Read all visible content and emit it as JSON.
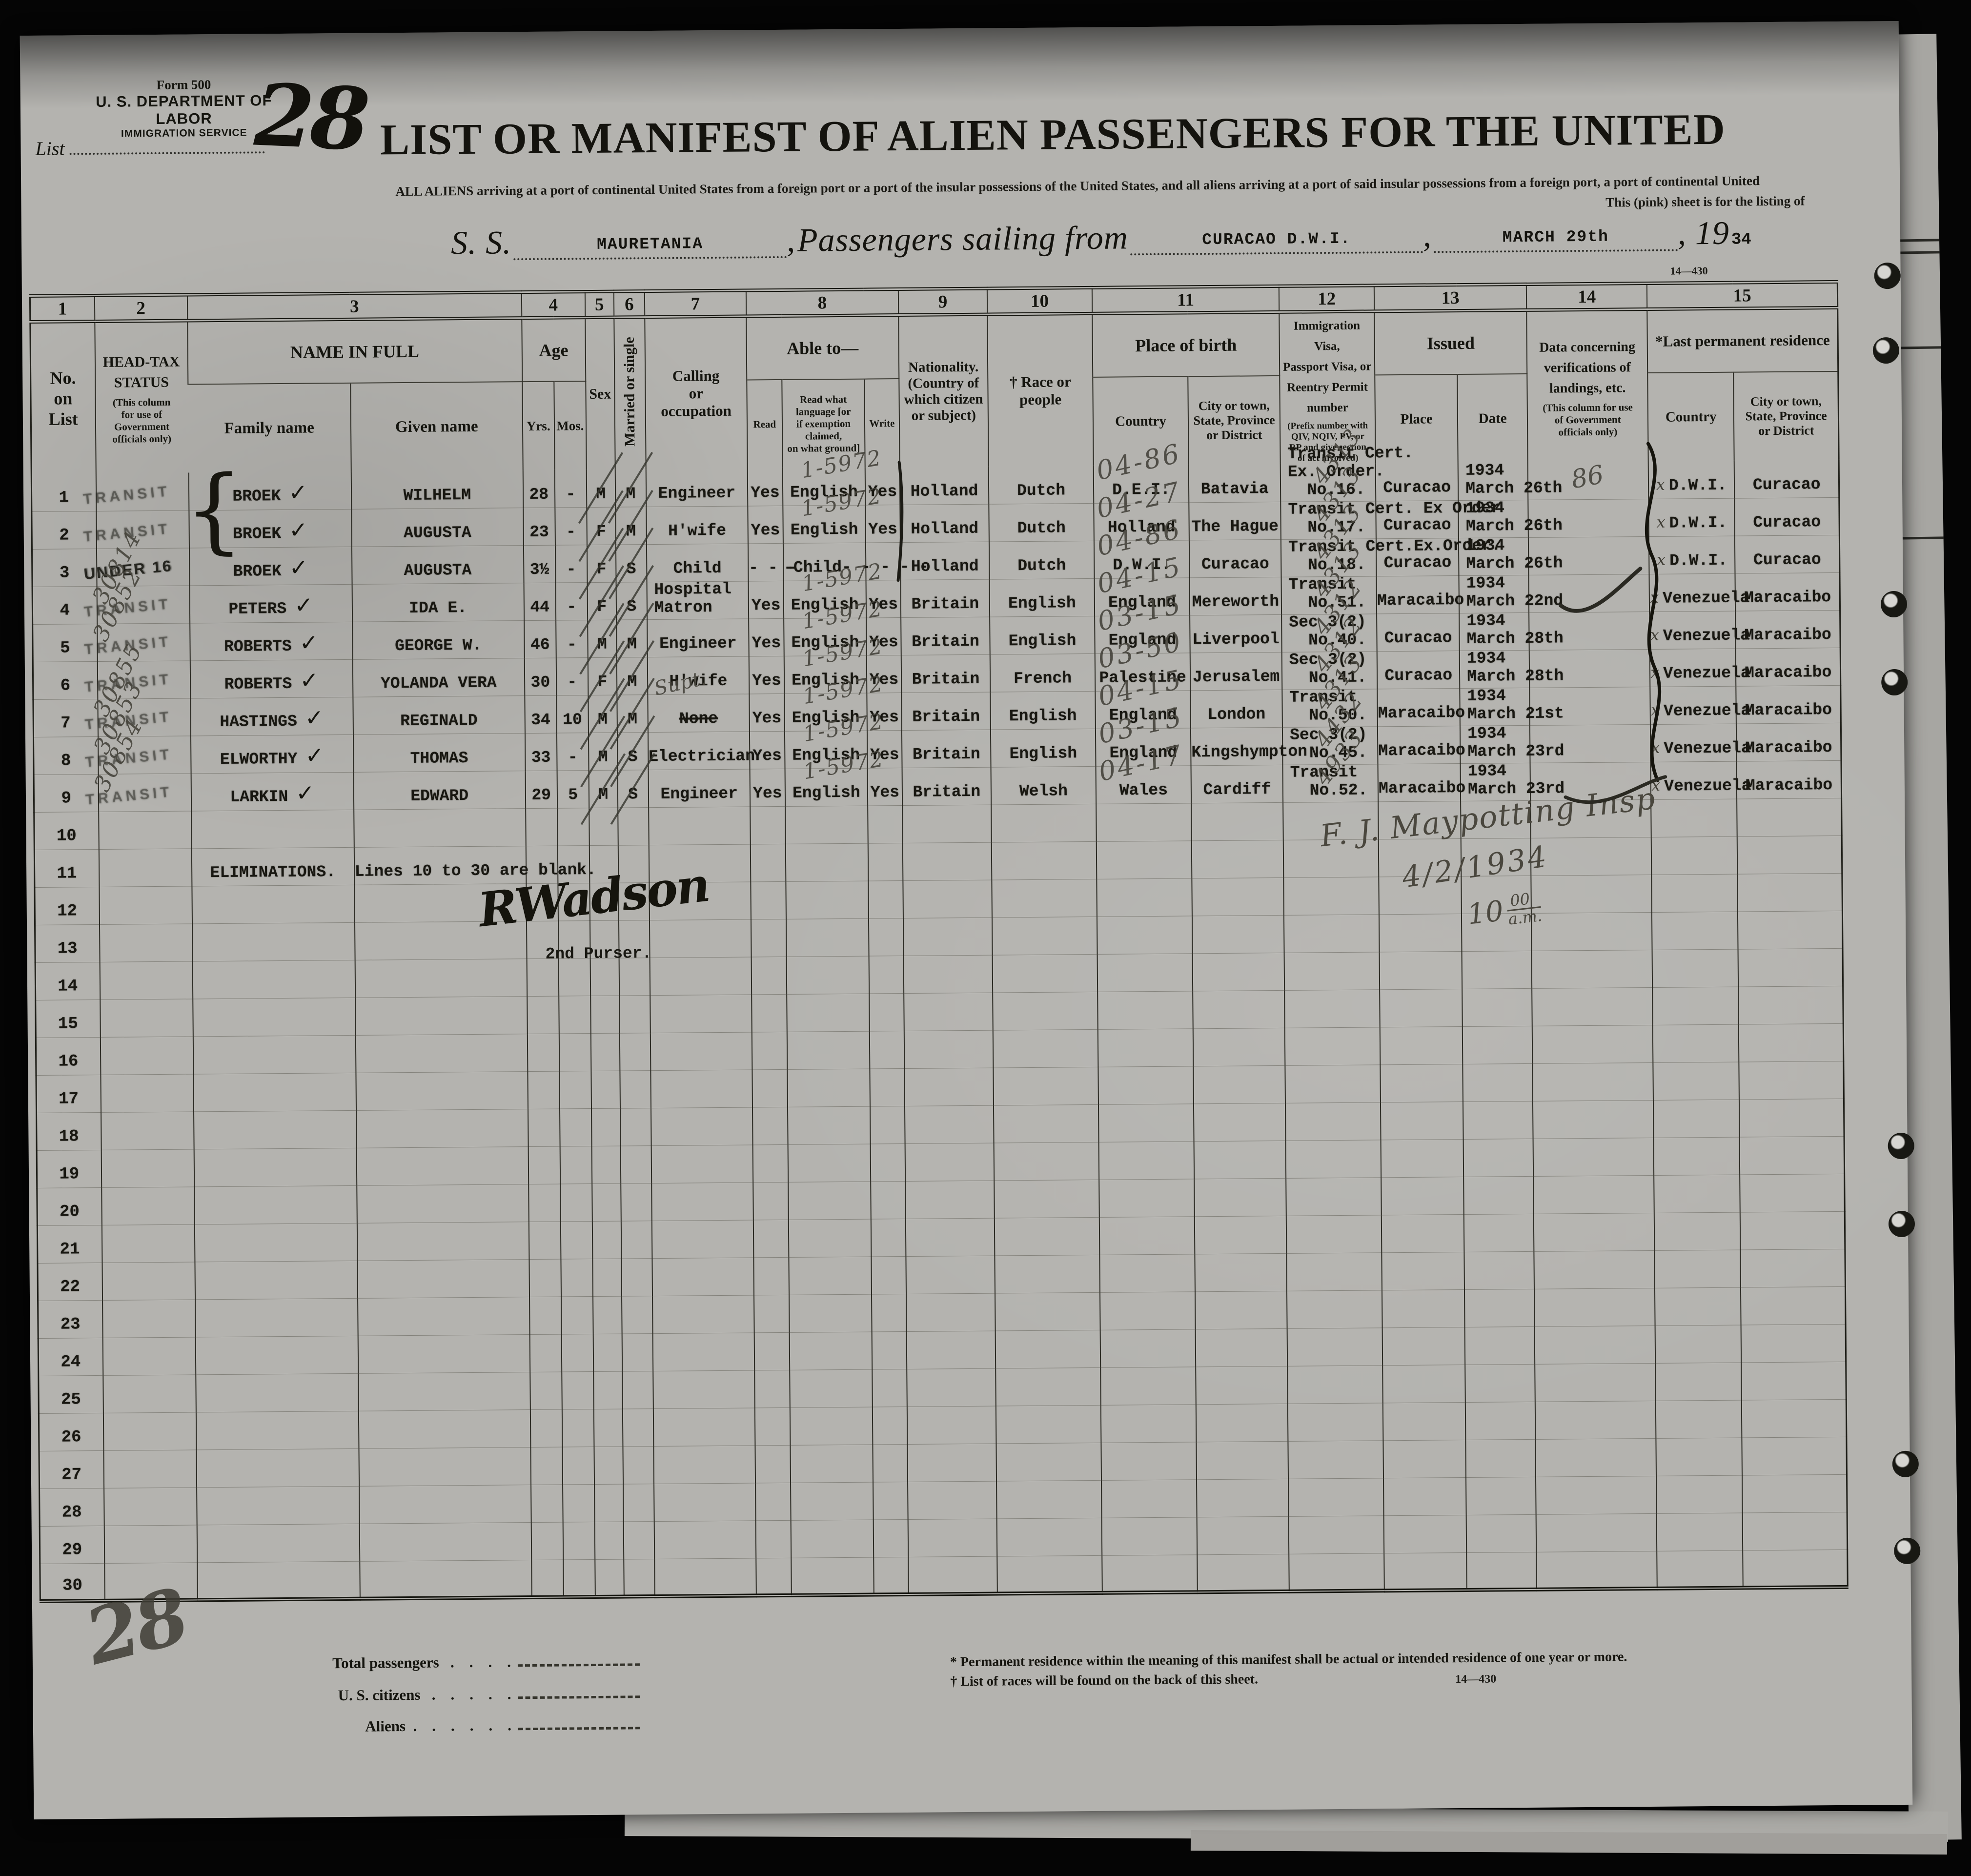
{
  "form": {
    "form_number": "Form 500",
    "department": "U. S. DEPARTMENT OF LABOR",
    "service": "IMMIGRATION SERVICE",
    "list_label": "List",
    "title": "LIST OR MANIFEST OF ALIEN PASSENGERS FOR THE UNITED",
    "subtitle": "ALL ALIENS arriving at a port of continental United States from a foreign port or a port of the insular possessions of the United States, and all aliens arriving at a port of said insular possessions from a foreign port, a port of continental United",
    "subtitle2": "This (pink) sheet is for the listing of",
    "ss_label": "S. S.",
    "ship_name": "MAURETANIA",
    "comma": ",",
    "sailing_label": "Passengers sailing from",
    "sailing_port": "CURACAO  D.W.I.",
    "sailing_date": "MARCH 29th",
    "year_prefix": ", 19",
    "year_suffix": "34",
    "form_code_top": "14—430"
  },
  "table": {
    "col_numbers": [
      "1",
      "2",
      "3",
      "4",
      "5",
      "6",
      "7",
      "8",
      "9",
      "10",
      "11",
      "12",
      "13",
      "14",
      "15"
    ],
    "headers": {
      "no_on_list": "No.\non\nList",
      "head_tax": "HEAD-TAX\nSTATUS",
      "head_tax_note": "(This column\nfor use of\nGovernment\nofficials only)",
      "name_in_full": "NAME IN FULL",
      "family_name": "Family name",
      "given_name": "Given name",
      "age": "Age",
      "yrs": "Yrs.",
      "mos": "Mos.",
      "sex": "Sex",
      "married_or_single": "Married or single",
      "calling": "Calling\nor\noccupation",
      "able_to": "Able to—",
      "read": "Read",
      "read_language": "Read what language [or\nif exemption claimed,\non what ground]",
      "write": "Write",
      "nationality": "Nationality.\n(Country of\nwhich citizen\nor subject)",
      "race": "† Race or people",
      "place_of_birth": "Place of birth",
      "birth_country": "Country",
      "birth_city": "City or town,\nState, Province\nor District",
      "visa": "Immigration Visa,\nPassport Visa, or\nReentry  Permit\nnumber",
      "visa_note": "(Prefix number with\nQIV, NQIV, PV, or\nRP and give section\nof act involved)",
      "issued": "Issued",
      "place": "Place",
      "date": "Date",
      "verification": "Data  concerning\nverifications of\nlandings, etc.",
      "verification_note": "(This column for use\nof Government\nofficials only)",
      "last_residence": "*Last permanent residence",
      "res_country": "Country",
      "res_city": "City or town,\nState, Province\nor District"
    },
    "rows": [
      {
        "no": "1",
        "stamp": "TRANSIT",
        "stamp_pencil": "",
        "family": "BROEK",
        "check": "✓",
        "given": "WILHELM",
        "yrs": "28",
        "mos": "-",
        "sex": "M",
        "marital": "M",
        "slash": true,
        "calling": "Engineer",
        "read": "Yes",
        "language": "English",
        "lang_pencil": "1-5972",
        "write": "Yes",
        "nationality": "Holland",
        "race": "Dutch",
        "birth_country": "D.E.I.",
        "birth_pencil": "04-86",
        "birth_city": "Batavia",
        "visa": "Transit Cert.\nEx. Order.\n  No.16.",
        "visa_pencil": "4313",
        "issue_place": "Curacao",
        "issue_date": "1934\nMarch 26th",
        "verif_pencil": "86",
        "res_mark": "x",
        "res_country": "D.W.I.",
        "res_city": "Curacao"
      },
      {
        "no": "2",
        "stamp": "TRANSIT",
        "stamp_pencil": "",
        "family": "BROEK",
        "check": "✓",
        "given": "AUGUSTA",
        "yrs": "23",
        "mos": "-",
        "sex": "F",
        "marital": "M",
        "slash": true,
        "calling": "H'wife",
        "read": "Yes",
        "language": "English",
        "lang_pencil": "1-5972",
        "write": "Yes",
        "nationality": "Holland",
        "race": "Dutch",
        "birth_country": "Holland",
        "birth_pencil": "04-27",
        "birth_city": "The Hague",
        "visa": "Transit Cert. Ex Order\n  No.17.",
        "visa_pencil": "4313",
        "issue_place": "Curacao",
        "issue_date": "1934\nMarch 26th",
        "verif_pencil": "",
        "res_mark": "x",
        "res_country": "D.W.I.",
        "res_city": "Curacao"
      },
      {
        "no": "3",
        "stamp": "UNDER 16",
        "stamp_pencil": "",
        "family": "BROEK",
        "check": "✓",
        "given": "AUGUSTA",
        "yrs": "3½",
        "mos": "-",
        "sex": "F",
        "marital": "S",
        "slash": true,
        "calling": "Child",
        "read": "- - -",
        "language": "-Child- - - - -",
        "lang_pencil": "",
        "write": "",
        "nationality": "Holland",
        "race": "Dutch",
        "birth_country": "D.W.I.",
        "birth_pencil": "04-86",
        "birth_city": "Curacao",
        "visa": "Transit Cert.Ex.Order.\n  No.18.",
        "visa_pencil": "4313",
        "issue_place": "Curacao",
        "issue_date": "1934\nMarch 26th",
        "verif_pencil": "",
        "res_mark": "x",
        "res_country": "D.W.I.",
        "res_city": "Curacao"
      },
      {
        "no": "4",
        "stamp": "TRANSIT",
        "stamp_pencil": "30814",
        "family": "PETERS",
        "check": "✓",
        "given": "IDA E.",
        "yrs": "44",
        "mos": "-",
        "sex": "F",
        "marital": "S",
        "slash": true,
        "calling": "Hospital\nMatron",
        "read": "Yes",
        "language": "English",
        "lang_pencil": "1-5972",
        "write": "Yes",
        "nationality": "Britain",
        "race": "English",
        "birth_country": "England",
        "birth_pencil": "04-15",
        "birth_city": "Mereworth",
        "visa": "Transit\n  No.51.",
        "visa_pencil": "4313",
        "issue_place": "Maracaibo",
        "issue_date": "1934\nMarch 22nd",
        "verif_pencil": "",
        "res_mark": "x",
        "res_country": "Venezuela",
        "res_city": "Maracaibo"
      },
      {
        "no": "5",
        "stamp": "TRANSIT",
        "stamp_pencil": "30852",
        "family": "ROBERTS",
        "check": "✓",
        "given": "GEORGE W.",
        "yrs": "46",
        "mos": "-",
        "sex": "M",
        "marital": "M",
        "slash": true,
        "calling": "Engineer",
        "read": "Yes",
        "language": "English",
        "lang_pencil": "1-5972",
        "write": "Yes",
        "nationality": "Britain",
        "race": "English",
        "birth_country": "England",
        "birth_pencil": "03-15",
        "birth_city": "Liverpool",
        "visa": "Sec 3(2)\n  No.40.",
        "visa_pencil": "4312",
        "issue_place": "Curacao",
        "issue_date": "1934\nMarch 28th",
        "verif_pencil": "",
        "res_mark": "x",
        "res_country": "Venezuela",
        "res_city": "Maracaibo"
      },
      {
        "no": "6",
        "stamp": "TRANSIT",
        "stamp_pencil": "",
        "family": "ROBERTS",
        "check": "✓",
        "given": "YOLANDA VERA",
        "yrs": "30",
        "mos": "-",
        "sex": "F",
        "marital": "M",
        "slash": true,
        "calling": "H'wife",
        "read": "Yes",
        "language": "English",
        "lang_pencil": "1-5972",
        "write": "Yes",
        "nationality": "Britain",
        "race": "French",
        "birth_country": "Palestine",
        "birth_pencil": "03-50",
        "birth_city": "Jerusalem",
        "visa": "Sec 3(2)\n  No.41.",
        "visa_pencil": "4312",
        "issue_place": "Curacao",
        "issue_date": "1934\nMarch 28th",
        "verif_pencil": "",
        "res_mark": "x",
        "res_country": "Venezuela",
        "res_city": "Maracaibo"
      },
      {
        "no": "7",
        "stamp": "TRANSIT",
        "stamp_pencil": "30855",
        "family": "HASTINGS",
        "check": "✓",
        "given": "REGINALD",
        "yrs": "34",
        "mos": "10",
        "sex": "M",
        "marital": "M",
        "slash": true,
        "calling": "None",
        "strike": true,
        "calling_pencil": "Supt.",
        "read": "Yes",
        "language": "English",
        "lang_pencil": "1-5972",
        "write": "Yes",
        "nationality": "Britain",
        "race": "English",
        "birth_country": "England",
        "birth_pencil": "04-15",
        "birth_city": "London",
        "visa": "Transit\n  No.50.",
        "visa_pencil": "4313",
        "issue_place": "Maracaibo",
        "issue_date": "1934\nMarch 21st",
        "verif_pencil": "",
        "res_mark": "x",
        "res_country": "Venezuela",
        "res_city": "Maracaibo"
      },
      {
        "no": "8",
        "stamp": "TRANSIT",
        "stamp_pencil": "30853",
        "family": "ELWORTHY",
        "check": "✓",
        "given": "THOMAS",
        "yrs": "33",
        "mos": "-",
        "sex": "M",
        "marital": "S",
        "slash": true,
        "calling": "Electrician",
        "read": "Yes",
        "language": "English",
        "lang_pencil": "1-5972",
        "write": "Yes",
        "nationality": "Britain",
        "race": "English",
        "birth_country": "England",
        "birth_pencil": "03-15",
        "birth_city": "Kingshympton",
        "visa": "Sec 3(2)\n  No.45.",
        "visa_pencil": "4432",
        "issue_place": "Maracaibo",
        "issue_date": "1934\nMarch 23rd",
        "verif_pencil": "",
        "res_mark": "x",
        "res_country": "Venezuela",
        "res_city": "Maracaibo"
      },
      {
        "no": "9",
        "stamp": "TRANSIT",
        "stamp_pencil": "30854",
        "family": "LARKIN",
        "check": "✓",
        "given": "EDWARD",
        "yrs": "29",
        "mos": "5",
        "sex": "M",
        "marital": "S",
        "slash": true,
        "calling": "Engineer",
        "read": "Yes",
        "language": "English",
        "lang_pencil": "1-5972",
        "write": "Yes",
        "nationality": "Britain",
        "race": "Welsh",
        "birth_country": "Wales",
        "birth_pencil": "04-17",
        "birth_city": "Cardiff",
        "visa": "Transit\n  No.52.",
        "visa_pencil": "4933",
        "issue_place": "Maracaibo",
        "issue_date": "1934\nMarch 23rd",
        "verif_pencil": "",
        "res_mark": "x",
        "res_country": "Venezuela",
        "res_city": "Maracaibo"
      },
      {
        "no": "11",
        "family": "ELIMINATIONS.",
        "given": "Lines 10 to 30 are blank."
      }
    ]
  },
  "annotations": {
    "list_number": "28",
    "brace": "{",
    "signature": "RWadson",
    "purser_title": "2nd Purser.",
    "inspector": "F. J. Maypotting Insp",
    "inspector_date": "4/2/1934",
    "time_hour": "10",
    "time_min": "00",
    "time_ampm": "a.m.",
    "corner_scribble": "28"
  },
  "footer": {
    "total_label": "Total passengers   .    .    .    .",
    "us_label": "U. S. citizens   .    .    .    .    .",
    "aliens_label": "Aliens  .    .    .    .    .    .",
    "note1": "* Permanent residence within the meaning of this manifest shall be actual or intended residence of one year or more.",
    "note2": "† List of races will be found on the back of this sheet.",
    "form_code": "14—430"
  }
}
